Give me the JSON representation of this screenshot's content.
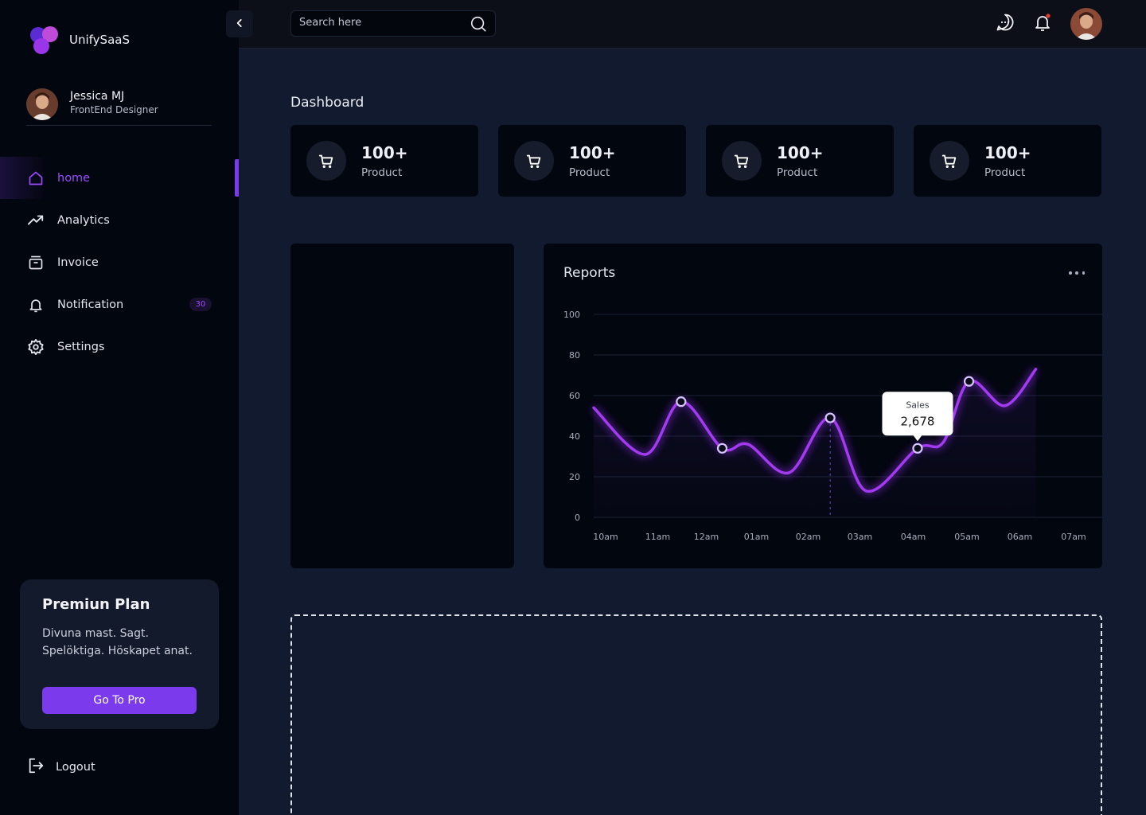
{
  "brand": {
    "name": "UnifySaaS",
    "logo_icon": "overlapping-circles-logo"
  },
  "user": {
    "name": "Jessica MJ",
    "role": "FrontEnd Designer"
  },
  "nav": [
    {
      "label": "home",
      "icon": "home-icon",
      "active": true
    },
    {
      "label": "Analytics",
      "icon": "trend-up-icon"
    },
    {
      "label": "Invoice",
      "icon": "invoice-icon"
    },
    {
      "label": "Notification",
      "icon": "bell-icon",
      "badge": "30"
    },
    {
      "label": "Settings",
      "icon": "gear-icon"
    }
  ],
  "premium": {
    "title": "Premiun Plan",
    "description": "Divuna mast. Sagt. Spelöktiga. Höskapet anat.",
    "button": "Go To Pro"
  },
  "logout": {
    "label": "Logout"
  },
  "topbar": {
    "search_placeholder": "Search here",
    "icons": [
      "chat-icon",
      "bell-icon",
      "avatar"
    ],
    "notification_dot_color": "#e53935"
  },
  "page": {
    "title": "Dashboard"
  },
  "stats": [
    {
      "value": "100+",
      "label": "Product",
      "icon": "cart-icon"
    },
    {
      "value": "100+",
      "label": "Product",
      "icon": "cart-icon"
    },
    {
      "value": "100+",
      "label": "Product",
      "icon": "cart-icon"
    },
    {
      "value": "100+",
      "label": "Product",
      "icon": "cart-icon"
    }
  ],
  "colors": {
    "accent": "#7c3aed",
    "line": "#a23bf0",
    "background": "#111a2e",
    "panel": "#02060f"
  },
  "chart_data": {
    "type": "line",
    "title": "Reports",
    "x": [
      "10am",
      "11am",
      "12am",
      "01am",
      "02am",
      "03am",
      "04am",
      "05am",
      "06am",
      "07am"
    ],
    "y_ticks": [
      0,
      20,
      40,
      60,
      80,
      100
    ],
    "ylim": [
      0,
      100
    ],
    "grid": true,
    "series": [
      {
        "points": [
          [
            0.0,
            54
          ],
          [
            1.0,
            31
          ],
          [
            1.7,
            57
          ],
          [
            2.5,
            34
          ],
          [
            3.0,
            36
          ],
          [
            3.8,
            22
          ],
          [
            4.6,
            49
          ],
          [
            5.3,
            13
          ],
          [
            6.3,
            34
          ],
          [
            6.8,
            37
          ],
          [
            7.3,
            67
          ],
          [
            8.0,
            55
          ],
          [
            8.6,
            73
          ]
        ],
        "markers": [
          2,
          3,
          6,
          8,
          10
        ]
      }
    ],
    "tooltip": {
      "label": "Sales",
      "value": "2,678",
      "point": 8
    },
    "hover_x": 4.6
  }
}
